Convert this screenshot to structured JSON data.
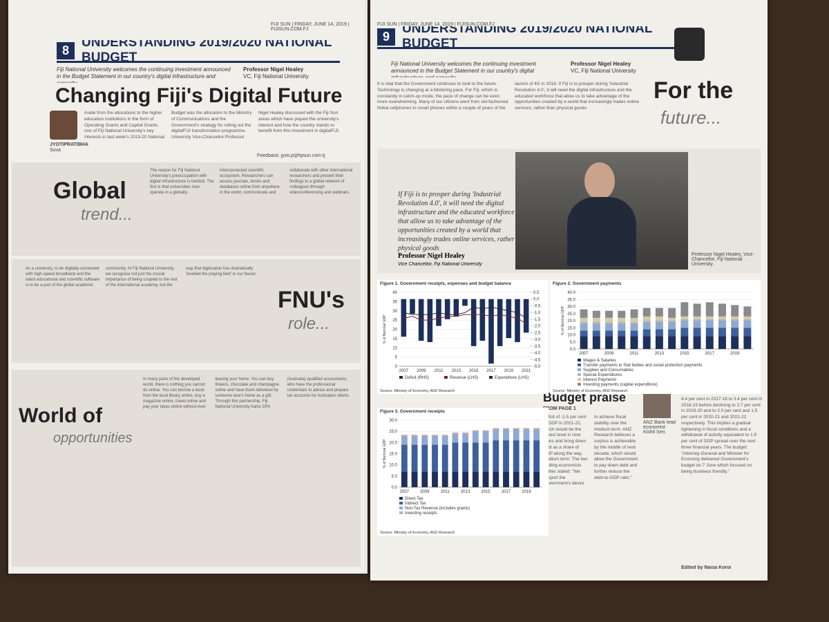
{
  "left_page": {
    "folio": "FIJI SUN  |  FRIDAY, JUNE 14, 2019  |  FIJISUN.COM.FJ",
    "page_number": "8",
    "section": "UNDERSTANDING 2019/2020 NATIONAL BUDGET",
    "quote": "Fiji National University welcomes the continuing investment announced in the Budget Statement in our country's digital infrastructure and capacity.",
    "quote_author": "Professor Nigel Healey",
    "quote_role": "VC, Fiji National University",
    "headline": "Changing Fiji's Digital Future",
    "byline": "JYOTIPRATIBHA",
    "byline_place": "Suva",
    "intro": "Aside from the allocations to the higher education institutions in the form of Operating Grants and Capital Grants, one of Fiji National University's key interests in last week's 2019-20 National Budget was the allocation to the Ministry of Communications and the Government's strategy for rolling out the digitalFIJI transformation programme. University Vice-Chancellor Professor Nigel Healey discussed with the Fiji Sun areas which have piqued the university's interest and how the country stands to benefit from this investment in digitalFIJI.",
    "email": "Feedback: jyoti.p@fijisun.com.fj",
    "sections": [
      {
        "title": "Global",
        "subtitle": "trend...",
        "text": "The reason for Fiji National University's preoccupation with digital infrastructure is twofold. The first is that universities now operate in a globally-interconnected scientific ecosystem. Researchers can access journals, books and databases online from anywhere in the world, communicate and collaborate with other international researchers and present their findings to a global network of colleagues through videoconferencing and webinars."
      },
      {
        "title": "FNU's",
        "subtitle": "role...",
        "text": "As a university, to be digitally-connected with high-speed broadband and the latest educational and scientific software is to be a part of the global academic community. At Fiji National University, we recognise not just the crucial importance of being coupled to the rest of the international academy, but the way that digitisation has dramatically 'levelled the playing field' in our favour."
      },
      {
        "title": "World of",
        "subtitle": "opportunities",
        "text": "In many parts of the developed world, there is nothing you cannot do online. You can borrow a book from the local library online, buy a magazine online, travel online and pay your taxes online without ever leaving your home. You can buy flowers, chocolate and champagne online and have them delivered by someone else's home as a gift. Through this partnership, Fiji National University trains CPA (Australia) qualified accountants, who have the professional credentials to advise and prepare tax accounts for Australian clients."
      }
    ]
  },
  "right_page": {
    "folio": "FIJI SUN  |  FRIDAY, JUNE 14, 2019  |  FIJISUN.COM.FJ",
    "page_number": "9",
    "section": "UNDERSTANDING 2019/2020 NATIONAL BUDGET",
    "quote": "Fiji National University welcomes the continuing investment announced in the Budget Statement in our country's digital infrastructure and capacity.",
    "quote_author": "Professor Nigel Healey",
    "quote_role": "VC, Fiji National University",
    "body": "It is vital that the Government continues to look to the future. Technology is changing at a blistering pace. For Fiji, which is constantly in catch-up mode, the pace of change can be even more overwhelming. Many of our citizens went from old-fashioned Nokia cellphones to smart phones within a couple of years of the launch of 4G in 2016. If Fiji is to prosper during 'Industrial Revolution 4.0', it will need the digital infrastructure and the educated workforce that allow us to take advantage of the opportunities created by a world that increasingly trades online services, rather than physical goods.",
    "headline": "For the",
    "headline_2": "future...",
    "pull_quote": "If Fiji is to prosper during 'Industrial Revolution 4.0', it will need the digital infrastructure and the educated workforce that allow us to take advantage of the opportunities created by a world that increasingly trades online services, rather physical goods",
    "pull_author": "Professor Nigel Healey",
    "pull_role": "Vice Chancellor, Fiji National University",
    "photo_caption": "Professor Nigel Healey, Vice-Chancellor, Fiji National University.",
    "article_headline": "Budget praise",
    "article_from": "FROM PAGE 1",
    "article_text": "deficit of -1.5 per cent of GDP in 2021-22, which would be the lowest level in nine years and bring down debt as a share of GDP along the way. Medium term: The two leading economists further stated: \"We support the Government's desire to achieve fiscal stability over the medium term. ANZ Research believes a surplus is achievable by the middle of next decade, which would allow the Government to pay down debt and further reduce the debt-to-GDP ratio.\"",
    "article_text_2": "deficit, as a share of GDP, will fall from 4.4 per cent in 2017-18 to 3.4 per cent in 2018-19 before declining to 2.7 per cent in 2019-20 and to 2.0 per cent and 1.5 per cent in 2020-21 and 2021-22 respectively. This implies a gradual tightening in fiscal conditions and a withdrawal of activity equivalent to 1.9 per cent of GDP spread over the next three financial years. The budget: \"Attorney-General and Minister for Economy delivered Government's budget on 7 June which focused on being business friendly.\"",
    "inset_caption": "ANZ Bank lead economist Kishti Sen.",
    "editor": "Edited by Naisa Koroi"
  },
  "chart_data": [
    {
      "type": "bar",
      "title": "Figure 1. Government receipts, expenses and budget balance",
      "categories": [
        "2007",
        null,
        "2009",
        null,
        "2011",
        null,
        "2013",
        null,
        "2015",
        null,
        "2017",
        null,
        "2019",
        null,
        "2021"
      ],
      "ylabel": "% of Nominal GDP",
      "ylim": [
        0,
        40
      ],
      "yticks": [
        0,
        5,
        10,
        15,
        20,
        25,
        30,
        35,
        40
      ],
      "y2lim": [
        -5,
        0.5
      ],
      "y2ticks": [
        0.5,
        {
          "value": 0,
          "label": "0.0"
        },
        -0.5,
        {
          "value": -1,
          "label": "-1.0"
        },
        -1.5,
        {
          "value": -2,
          "label": "-2.0"
        },
        -2.5,
        {
          "value": -3,
          "label": "-3.0"
        },
        -3.5,
        {
          "value": -4,
          "label": "-4.0"
        },
        -4.5,
        {
          "value": -5,
          "label": "-5.0"
        }
      ],
      "series": [
        {
          "name": "Deficit (RHS)",
          "axis": "y2",
          "color": "#1d2f5a",
          "values": [
            -2.8,
            -1.1,
            -3.1,
            -3.2,
            -2.0,
            -1.5,
            -1.3,
            -0.5,
            -3.5,
            -3.1,
            -4.8,
            -3.5,
            -2.9,
            -3.2,
            -2.5
          ]
        },
        {
          "name": "Revenue (LHS)",
          "mark": "line",
          "color": "#7a2431",
          "values": [
            26,
            27,
            25,
            25,
            26,
            27,
            27,
            28,
            28,
            28,
            27,
            28,
            27,
            26,
            23
          ]
        },
        {
          "name": "Expenditure (LHS)",
          "mark": "line",
          "color": "#2a2a2a",
          "values": [
            29,
            28,
            28,
            28,
            29,
            28,
            28,
            29,
            32,
            31,
            32,
            31,
            30,
            29,
            26
          ]
        }
      ],
      "source": "Source: Ministry of Economy, ANZ Research"
    },
    {
      "type": "bar",
      "stacked": true,
      "title": "Figure 2. Government payments",
      "categories": [
        "2007",
        null,
        "2009",
        null,
        "2011",
        null,
        "2013",
        null,
        "2015",
        null,
        "2017",
        null,
        "2019",
        null
      ],
      "ylabel": "% of Nominal GDP",
      "ylim": [
        0,
        40
      ],
      "yticks": [
        {
          "value": 0,
          "label": "0.0"
        },
        {
          "value": 5,
          "label": "5.0"
        },
        {
          "value": 10,
          "label": "10.0"
        },
        {
          "value": 15,
          "label": "15.0"
        },
        {
          "value": 20,
          "label": "20.0"
        },
        {
          "value": 25,
          "label": "25.0"
        },
        {
          "value": 30,
          "label": "30.0"
        },
        {
          "value": 35,
          "label": "35.0"
        },
        {
          "value": 40,
          "label": "40.0"
        }
      ],
      "series": [
        {
          "name": "Wages & Salaries",
          "color": "#1d2f5a",
          "values": [
            9,
            9,
            9,
            9,
            9,
            9,
            9,
            9,
            9,
            9,
            9,
            9,
            9,
            9
          ]
        },
        {
          "name": "Transfer payments to Stat bodies and social protection payments",
          "color": "#3d5f9c",
          "values": [
            4,
            4,
            4,
            4,
            4,
            5,
            5,
            5,
            6,
            6,
            6,
            6,
            6,
            6
          ]
        },
        {
          "name": "Supplies and Consumables",
          "color": "#8fa9d2",
          "values": [
            5,
            5,
            5,
            5,
            5,
            5,
            5,
            5,
            5,
            5,
            5,
            5,
            5,
            5
          ]
        },
        {
          "name": "Special Expenditures",
          "color": "#b5b5b5",
          "values": [
            1,
            1,
            1,
            1,
            1,
            1,
            1,
            1,
            1,
            1,
            1,
            1,
            1,
            1
          ]
        },
        {
          "name": "Interest Payments",
          "color": "#d4c9a8",
          "values": [
            3,
            3,
            3,
            3,
            3,
            3,
            3,
            2,
            2,
            2,
            2,
            2,
            2,
            2
          ]
        },
        {
          "name": "Investing payments (capital expenditure)",
          "color": "#8a8a8a",
          "values": [
            6,
            5,
            5,
            5,
            6,
            6,
            6,
            7,
            10,
            9,
            10,
            9,
            8,
            7
          ]
        }
      ],
      "source": "Source: Ministry of Economy, ANZ Research"
    },
    {
      "type": "bar",
      "stacked": true,
      "title": "Figure 3. Government receipts",
      "categories": [
        "2007",
        null,
        "2009",
        null,
        "2011",
        null,
        "2013",
        null,
        "2015",
        null,
        "2017",
        null,
        "2019",
        null
      ],
      "ylabel": "% of Nominal GDP",
      "ylim": [
        0,
        30
      ],
      "yticks": [
        {
          "value": 0,
          "label": "0.0"
        },
        {
          "value": 5,
          "label": "5.0"
        },
        {
          "value": 10,
          "label": "10.0"
        },
        {
          "value": 15,
          "label": "15.0"
        },
        {
          "value": 20,
          "label": "20.0"
        },
        {
          "value": 25,
          "label": "25.0"
        },
        {
          "value": 30,
          "label": "30.0"
        }
      ],
      "series": [
        {
          "name": "Direct Tax",
          "color": "#1d2f5a",
          "values": [
            7,
            7,
            7,
            7,
            7,
            7,
            7,
            7,
            7,
            7,
            7,
            7,
            7,
            7
          ]
        },
        {
          "name": "Indirect Tax",
          "color": "#3d5f9c",
          "values": [
            12,
            12,
            12,
            12,
            12,
            13,
            13,
            13,
            13,
            14,
            14,
            14,
            14,
            14
          ]
        },
        {
          "name": "Non-Tax Revenue (includes grants)",
          "color": "#8fa9d2",
          "values": [
            4,
            4,
            4,
            4,
            4,
            4,
            4,
            5,
            5,
            5,
            5,
            5,
            5,
            5
          ]
        },
        {
          "name": "Investing receipts",
          "color": "#d9a5a5",
          "values": [
            0.5,
            0.5,
            0.5,
            0.5,
            0.5,
            0.5,
            0.5,
            0.5,
            0.5,
            0.5,
            0.5,
            0.5,
            0.5,
            0.5
          ]
        }
      ],
      "source": "Source: Ministry of Economy, ANZ Research"
    }
  ]
}
